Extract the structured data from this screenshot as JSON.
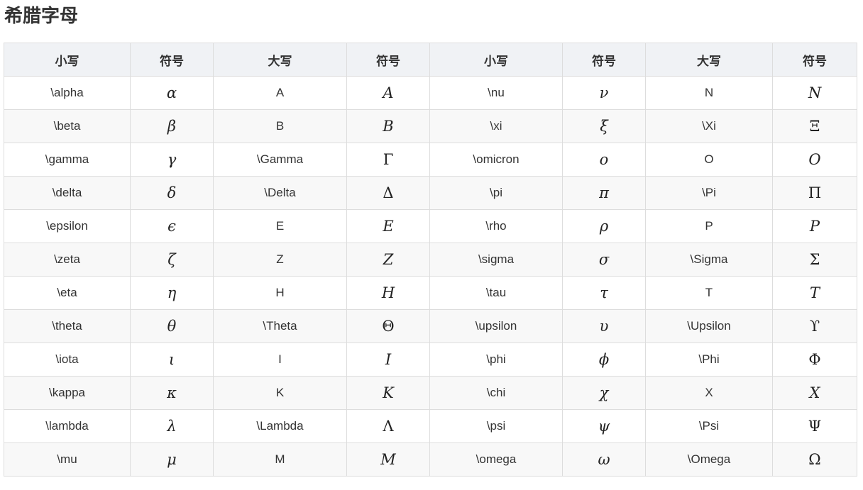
{
  "page": {
    "title": "希腊字母"
  },
  "table": {
    "headers": [
      "小写",
      "符号",
      "大写",
      "符号",
      "小写",
      "符号",
      "大写",
      "符号"
    ],
    "rows": [
      {
        "lower1": "\\alpha",
        "lower1_sym": "α",
        "upper1": "A",
        "upper1_sym": "A",
        "lower2": "\\nu",
        "lower2_sym": "ν",
        "upper2": "N",
        "upper2_sym": "N"
      },
      {
        "lower1": "\\beta",
        "lower1_sym": "β",
        "upper1": "B",
        "upper1_sym": "B",
        "lower2": "\\xi",
        "lower2_sym": "ξ",
        "upper2": "\\Xi",
        "upper2_sym": "Ξ"
      },
      {
        "lower1": "\\gamma",
        "lower1_sym": "γ",
        "upper1": "\\Gamma",
        "upper1_sym": "Γ",
        "lower2": "\\omicron",
        "lower2_sym": "o",
        "upper2": "O",
        "upper2_sym": "O"
      },
      {
        "lower1": "\\delta",
        "lower1_sym": "δ",
        "upper1": "\\Delta",
        "upper1_sym": "Δ",
        "lower2": "\\pi",
        "lower2_sym": "π",
        "upper2": "\\Pi",
        "upper2_sym": "Π"
      },
      {
        "lower1": "\\epsilon",
        "lower1_sym": "ϵ",
        "upper1": "E",
        "upper1_sym": "E",
        "lower2": "\\rho",
        "lower2_sym": "ρ",
        "upper2": "P",
        "upper2_sym": "P"
      },
      {
        "lower1": "\\zeta",
        "lower1_sym": "ζ",
        "upper1": "Z",
        "upper1_sym": "Z",
        "lower2": "\\sigma",
        "lower2_sym": "σ",
        "upper2": "\\Sigma",
        "upper2_sym": "Σ"
      },
      {
        "lower1": "\\eta",
        "lower1_sym": "η",
        "upper1": "H",
        "upper1_sym": "H",
        "lower2": "\\tau",
        "lower2_sym": "τ",
        "upper2": "T",
        "upper2_sym": "T"
      },
      {
        "lower1": "\\theta",
        "lower1_sym": "θ",
        "upper1": "\\Theta",
        "upper1_sym": "Θ",
        "lower2": "\\upsilon",
        "lower2_sym": "υ",
        "upper2": "\\Upsilon",
        "upper2_sym": "ϒ"
      },
      {
        "lower1": "\\iota",
        "lower1_sym": "ι",
        "upper1": "I",
        "upper1_sym": "I",
        "lower2": "\\phi",
        "lower2_sym": "ϕ",
        "upper2": "\\Phi",
        "upper2_sym": "Φ"
      },
      {
        "lower1": "\\kappa",
        "lower1_sym": "κ",
        "upper1": "K",
        "upper1_sym": "K",
        "lower2": "\\chi",
        "lower2_sym": "χ",
        "upper2": "X",
        "upper2_sym": "X"
      },
      {
        "lower1": "\\lambda",
        "lower1_sym": "λ",
        "upper1": "\\Lambda",
        "upper1_sym": "Λ",
        "lower2": "\\psi",
        "lower2_sym": "ψ",
        "upper2": "\\Psi",
        "upper2_sym": "Ψ"
      },
      {
        "lower1": "\\mu",
        "lower1_sym": "μ",
        "upper1": "M",
        "upper1_sym": "M",
        "lower2": "\\omega",
        "lower2_sym": "ω",
        "upper2": "\\Omega",
        "upper2_sym": "Ω"
      }
    ]
  }
}
